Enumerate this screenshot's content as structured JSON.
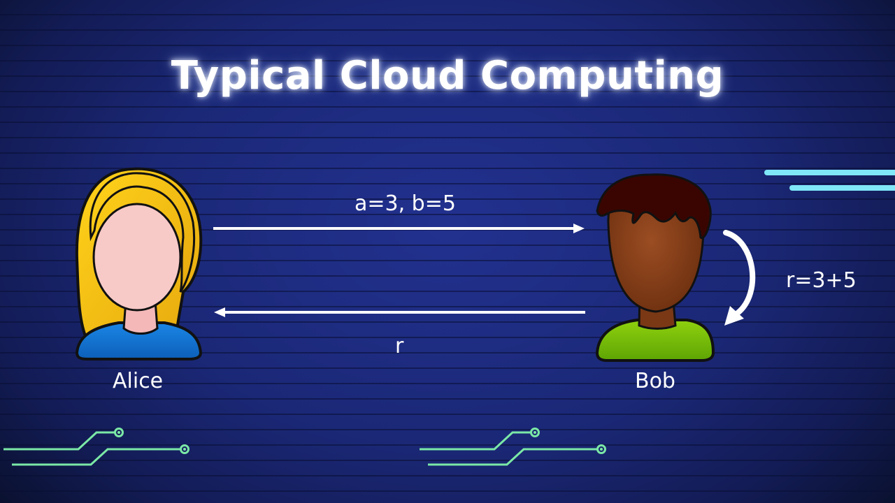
{
  "title": "Typical Cloud Computing",
  "actors": {
    "alice": {
      "name": "Alice"
    },
    "bob": {
      "name": "Bob"
    }
  },
  "messages": {
    "request": "a=3, b=5",
    "response": "r",
    "computation": "r=3+5"
  },
  "colors": {
    "background": "#1b2877",
    "arrow": "#ffffff",
    "circuit": "#7be8a6",
    "accent_line": "#7fe7f7"
  }
}
